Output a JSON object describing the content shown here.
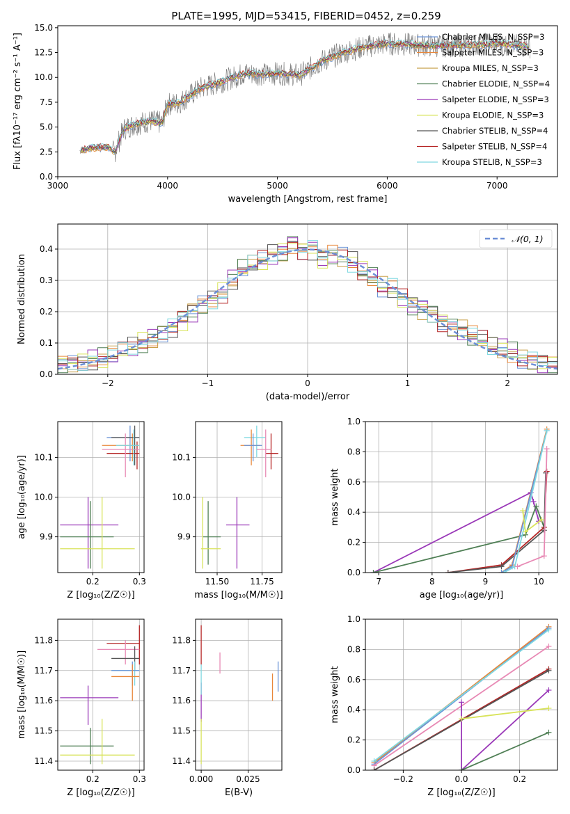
{
  "figure": {
    "title": "PLATE=1995, MJD=53415, FIBERID=0452, z=0.259"
  },
  "colors": {
    "chabrier_miles": "#6a93d6",
    "salpeter_miles": "#e8873a",
    "kroupa_miles": "#c8a04a",
    "chabrier_elodie": "#4f7f55",
    "salpeter_elodie": "#9a38b8",
    "kroupa_elodie": "#d8e35a",
    "chabrier_stelib": "#555555",
    "salpeter_stelib": "#b52424",
    "kroupa_stelib": "#7fd8e0",
    "pink": "#e88ab5",
    "normal": "#6d8fd6",
    "grid": "#b0b0b0",
    "spectrum": "#777777"
  },
  "chart_data": [
    {
      "id": "spectrum",
      "type": "line",
      "xlabel": "wavelength [Angstrom, rest frame]",
      "ylabel": "Flux [fλ10⁻¹⁷ erg cm⁻² s⁻¹ A⁻¹]",
      "xlim": [
        3000,
        7550
      ],
      "ylim": [
        0,
        15.2
      ],
      "xticks": [
        "3000",
        "4000",
        "5000",
        "6000",
        "7000"
      ],
      "yticks": [
        "0.0",
        "2.5",
        "5.0",
        "7.5",
        "10.0",
        "12.5",
        "15.0"
      ],
      "grid": false,
      "legend_position": "right",
      "legend": [
        "Chabrier MILES, N_SSP=3",
        "Salpeter MILES, N_SSP=3",
        "Kroupa MILES, N_SSP=3",
        "Chabrier ELODIE, N_SSP=4",
        "Salpeter ELODIE, N_SSP=3",
        "Kroupa ELODIE, N_SSP=3",
        "Chabrier STELIB, N_SSP=4",
        "Salpeter STELIB, N_SSP=4",
        "Kroupa STELIB, N_SSP=3"
      ],
      "continuum": {
        "x": [
          3200,
          3300,
          3450,
          3520,
          3600,
          3700,
          3850,
          3950,
          4000,
          4100,
          4300,
          4500,
          4700,
          4900,
          5000,
          5150,
          5200,
          5400,
          5600,
          5800,
          6000,
          6200,
          6400,
          6600,
          6800,
          7000,
          7200,
          7300
        ],
        "y": [
          2.6,
          2.9,
          3.0,
          2.5,
          4.8,
          5.3,
          5.6,
          5.4,
          7.3,
          7.4,
          8.9,
          9.6,
          10.4,
          10.3,
          10.4,
          10.3,
          10.2,
          11.6,
          12.5,
          13.1,
          13.4,
          13.3,
          13.2,
          13.2,
          13.3,
          13.4,
          13.2,
          13.1
        ]
      }
    },
    {
      "id": "residual-histogram",
      "type": "line",
      "xlabel": "(data-model)/error",
      "ylabel": "Normed distribution",
      "xlim": [
        -2.5,
        2.5
      ],
      "ylim": [
        0,
        0.48
      ],
      "xticks": [
        "−2",
        "−1",
        "0",
        "1",
        "2"
      ],
      "yticks": [
        "0.0",
        "0.1",
        "0.2",
        "0.3",
        "0.4"
      ],
      "grid": true,
      "legend_position": "top-right",
      "legend": [
        "𝒩(0, 1)"
      ],
      "bin_edges": [
        -2.5,
        -2.4,
        -2.3,
        -2.2,
        -2.1,
        -2.0,
        -1.9,
        -1.8,
        -1.7,
        -1.6,
        -1.5,
        -1.4,
        -1.3,
        -1.2,
        -1.1,
        -1.0,
        -0.9,
        -0.8,
        -0.7,
        -0.6,
        -0.5,
        -0.4,
        -0.3,
        -0.2,
        -0.1,
        0.0,
        0.1,
        0.2,
        0.3,
        0.4,
        0.5,
        0.6,
        0.7,
        0.8,
        0.9,
        1.0,
        1.1,
        1.2,
        1.3,
        1.4,
        1.5,
        1.6,
        1.7,
        1.8,
        1.9,
        2.0,
        2.1,
        2.2,
        2.3,
        2.4,
        2.5
      ],
      "histogram_mean": [
        0.03,
        0.035,
        0.04,
        0.045,
        0.05,
        0.06,
        0.075,
        0.085,
        0.1,
        0.115,
        0.135,
        0.15,
        0.175,
        0.2,
        0.22,
        0.24,
        0.26,
        0.3,
        0.34,
        0.35,
        0.36,
        0.38,
        0.39,
        0.42,
        0.4,
        0.4,
        0.37,
        0.38,
        0.37,
        0.36,
        0.33,
        0.31,
        0.28,
        0.27,
        0.24,
        0.22,
        0.21,
        0.2,
        0.17,
        0.15,
        0.14,
        0.12,
        0.11,
        0.09,
        0.08,
        0.07,
        0.05,
        0.04,
        0.035,
        0.03
      ]
    },
    {
      "id": "age-vs-z",
      "type": "scatter",
      "xlabel": "Z [log₁₀(Z/Z☉)]",
      "ylabel": "age  [log₁₀(age/yr)]",
      "xlim": [
        0.125,
        0.31
      ],
      "ylim": [
        9.81,
        10.19
      ],
      "xticks": [
        "0.2",
        "0.3"
      ],
      "yticks": [
        "9.9",
        "10.0",
        "10.1"
      ],
      "grid": true,
      "points": [
        {
          "series": "chabrier_miles",
          "x": 0.28,
          "y": 10.15,
          "xerr": [
            0.23,
            0.3
          ],
          "yerr": [
            10.09,
            10.18
          ]
        },
        {
          "series": "salpeter_miles",
          "x": 0.285,
          "y": 10.13,
          "xerr": [
            0.22,
            0.3
          ],
          "yerr": [
            10.09,
            10.16
          ]
        },
        {
          "series": "chabrier_stelib",
          "x": 0.29,
          "y": 10.15,
          "xerr": [
            0.24,
            0.3
          ],
          "yerr": [
            10.08,
            10.18
          ]
        },
        {
          "series": "salpeter_stelib",
          "x": 0.295,
          "y": 10.11,
          "xerr": [
            0.23,
            0.3
          ],
          "yerr": [
            10.07,
            10.14
          ]
        },
        {
          "series": "pink",
          "x": 0.27,
          "y": 10.12,
          "xerr": [
            0.22,
            0.3
          ],
          "yerr": [
            10.05,
            10.16
          ]
        },
        {
          "series": "kroupa_stelib",
          "x": 0.288,
          "y": 10.13,
          "xerr": [
            0.25,
            0.3
          ],
          "yerr": [
            10.08,
            10.17
          ]
        },
        {
          "series": "salpeter_elodie",
          "x": 0.19,
          "y": 9.93,
          "xerr": [
            0.13,
            0.255
          ],
          "yerr": [
            9.82,
            10.0
          ]
        },
        {
          "series": "chabrier_elodie",
          "x": 0.195,
          "y": 9.9,
          "xerr": [
            0.13,
            0.245
          ],
          "yerr": [
            9.82,
            9.99
          ]
        },
        {
          "series": "kroupa_elodie",
          "x": 0.22,
          "y": 9.87,
          "xerr": [
            0.13,
            0.29
          ],
          "yerr": [
            9.82,
            10.0
          ]
        }
      ]
    },
    {
      "id": "age-vs-mass",
      "type": "scatter",
      "xlabel": "mass [log₁₀(M/M☉)]",
      "ylabel": "",
      "xlim": [
        11.38,
        11.86
      ],
      "ylim": [
        9.81,
        10.19
      ],
      "xticks": [
        "11.50",
        "11.75"
      ],
      "yticks": [
        "9.9",
        "10.0",
        "10.1"
      ],
      "grid": true,
      "points": [
        {
          "series": "kroupa_stelib",
          "x": 11.72,
          "y": 10.15,
          "xerr": [
            11.65,
            11.77
          ],
          "yerr": [
            10.1,
            10.18
          ]
        },
        {
          "series": "salpeter_miles",
          "x": 11.69,
          "y": 10.13,
          "xerr": [
            11.63,
            11.74
          ],
          "yerr": [
            10.08,
            10.17
          ]
        },
        {
          "series": "chabrier_miles",
          "x": 11.7,
          "y": 10.13,
          "xerr": [
            11.65,
            11.75
          ],
          "yerr": [
            10.09,
            10.16
          ]
        },
        {
          "series": "salpeter_stelib",
          "x": 11.8,
          "y": 10.11,
          "xerr": [
            11.77,
            11.84
          ],
          "yerr": [
            10.07,
            10.16
          ]
        },
        {
          "series": "pink",
          "x": 11.77,
          "y": 10.12,
          "xerr": [
            11.72,
            11.8
          ],
          "yerr": [
            10.05,
            10.17
          ]
        },
        {
          "series": "salpeter_elodie",
          "x": 11.61,
          "y": 9.93,
          "xerr": [
            11.55,
            11.68
          ],
          "yerr": [
            9.82,
            10.0
          ]
        },
        {
          "series": "chabrier_elodie",
          "x": 11.45,
          "y": 9.9,
          "xerr": [
            11.42,
            11.52
          ],
          "yerr": [
            9.83,
            9.99
          ]
        },
        {
          "series": "kroupa_elodie",
          "x": 11.42,
          "y": 9.87,
          "xerr": [
            11.41,
            11.52
          ],
          "yerr": [
            9.82,
            10.0
          ]
        }
      ]
    },
    {
      "id": "weight-vs-age",
      "type": "line",
      "xlabel": "age  [log₁₀(age/yr)]",
      "ylabel": "mass weight",
      "xlim": [
        6.75,
        10.35
      ],
      "ylim": [
        0,
        1.0
      ],
      "xticks": [
        "7",
        "8",
        "9",
        "10"
      ],
      "yticks": [
        "0.0",
        "0.2",
        "0.4",
        "0.6",
        "0.8",
        "1.0"
      ],
      "grid": true,
      "series": [
        {
          "color": "salpeter_elodie",
          "x": [
            6.9,
            9.85,
            9.9,
            10.0
          ],
          "y": [
            0.0,
            0.53,
            0.47,
            0.34
          ]
        },
        {
          "color": "chabrier_elodie",
          "x": [
            6.9,
            9.75,
            9.95,
            10.1
          ],
          "y": [
            0.0,
            0.25,
            0.44,
            0.3
          ]
        },
        {
          "color": "salpeter_stelib",
          "x": [
            8.3,
            9.3,
            10.1,
            10.15
          ],
          "y": [
            0.0,
            0.05,
            0.3,
            0.67
          ]
        },
        {
          "color": "chabrier_stelib",
          "x": [
            8.3,
            9.3,
            10.1,
            10.13
          ],
          "y": [
            0.0,
            0.04,
            0.28,
            0.66
          ]
        },
        {
          "color": "salpeter_miles",
          "x": [
            9.3,
            9.5,
            10.15
          ],
          "y": [
            0.0,
            0.05,
            0.95
          ]
        },
        {
          "color": "chabrier_miles",
          "x": [
            9.3,
            9.5,
            10.15
          ],
          "y": [
            0.0,
            0.04,
            0.94
          ]
        },
        {
          "color": "kroupa_stelib",
          "x": [
            9.35,
            9.55,
            10.15
          ],
          "y": [
            0.0,
            0.04,
            0.94
          ]
        },
        {
          "color": "kroupa_elodie",
          "x": [
            9.7,
            9.75,
            10.05
          ],
          "y": [
            0.41,
            0.27,
            0.35
          ]
        },
        {
          "color": "pink",
          "x": [
            9.6,
            10.1,
            10.15
          ],
          "y": [
            0.04,
            0.11,
            0.82
          ]
        }
      ]
    },
    {
      "id": "mass-vs-z",
      "type": "scatter",
      "xlabel": "Z [log₁₀(Z/Z☉)]",
      "ylabel": "mass [log₁₀(M/M☉)]",
      "xlim": [
        0.125,
        0.31
      ],
      "ylim": [
        11.37,
        11.87
      ],
      "xticks": [
        "0.2",
        "0.3"
      ],
      "yticks": [
        "11.4",
        "11.5",
        "11.6",
        "11.7",
        "11.8"
      ],
      "grid": true,
      "points": [
        {
          "series": "salpeter_stelib",
          "x": 0.3,
          "y": 11.79,
          "xerr": [
            0.23,
            0.3
          ],
          "yerr": [
            11.72,
            11.85
          ]
        },
        {
          "series": "pink",
          "x": 0.27,
          "y": 11.77,
          "xerr": [
            0.21,
            0.3
          ],
          "yerr": [
            11.72,
            11.8
          ]
        },
        {
          "series": "chabrier_stelib",
          "x": 0.29,
          "y": 11.74,
          "xerr": [
            0.24,
            0.3
          ],
          "yerr": [
            11.7,
            11.78
          ]
        },
        {
          "series": "kroupa_stelib",
          "x": 0.29,
          "y": 11.7,
          "xerr": [
            0.24,
            0.3
          ],
          "yerr": [
            11.65,
            11.73
          ]
        },
        {
          "series": "chabrier_miles",
          "x": 0.285,
          "y": 11.7,
          "xerr": [
            0.24,
            0.3
          ],
          "yerr": [
            11.65,
            11.73
          ]
        },
        {
          "series": "salpeter_miles",
          "x": 0.285,
          "y": 11.68,
          "xerr": [
            0.24,
            0.3
          ],
          "yerr": [
            11.6,
            11.72
          ]
        },
        {
          "series": "salpeter_elodie",
          "x": 0.19,
          "y": 11.61,
          "xerr": [
            0.13,
            0.255
          ],
          "yerr": [
            11.52,
            11.65
          ]
        },
        {
          "series": "chabrier_elodie",
          "x": 0.195,
          "y": 11.45,
          "xerr": [
            0.13,
            0.245
          ],
          "yerr": [
            11.39,
            11.51
          ]
        },
        {
          "series": "kroupa_elodie",
          "x": 0.22,
          "y": 11.42,
          "xerr": [
            0.13,
            0.29
          ],
          "yerr": [
            11.39,
            11.54
          ]
        }
      ]
    },
    {
      "id": "mass-vs-ebv",
      "type": "scatter",
      "xlabel": "E(B-V)",
      "ylabel": "",
      "xlim": [
        -0.003,
        0.043
      ],
      "ylim": [
        11.37,
        11.87
      ],
      "xticks": [
        "0.000",
        "0.025"
      ],
      "yticks": [
        "11.4",
        "11.5",
        "11.6",
        "11.7",
        "11.8"
      ],
      "grid": true,
      "points": [
        {
          "series": "salpeter_stelib",
          "x": 0.0,
          "y": 11.79,
          "xerr": [
            0.0,
            0.0
          ],
          "yerr": [
            11.72,
            11.85
          ]
        },
        {
          "series": "salpeter_elodie",
          "x": 0.0,
          "y": 11.61,
          "xerr": [
            0.0,
            0.0
          ],
          "yerr": [
            11.53,
            11.66
          ]
        },
        {
          "series": "kroupa_stelib",
          "x": 0.0,
          "y": 11.68,
          "xerr": [
            0.0,
            0.0
          ],
          "yerr": [
            11.62,
            11.72
          ]
        },
        {
          "series": "kroupa_elodie",
          "x": 0.0,
          "y": 11.45,
          "xerr": [
            0.0,
            0.0
          ],
          "yerr": [
            11.39,
            11.54
          ]
        },
        {
          "series": "pink",
          "x": 0.01,
          "y": 11.72,
          "xerr": [
            0.01,
            0.01
          ],
          "yerr": [
            11.69,
            11.76
          ]
        },
        {
          "series": "salpeter_miles",
          "x": 0.038,
          "y": 11.66,
          "xerr": [
            0.038,
            0.038
          ],
          "yerr": [
            11.6,
            11.69
          ]
        },
        {
          "series": "chabrier_miles",
          "x": 0.041,
          "y": 11.69,
          "xerr": [
            0.041,
            0.041
          ],
          "yerr": [
            11.63,
            11.73
          ]
        }
      ]
    },
    {
      "id": "weight-vs-z",
      "type": "line",
      "xlabel": "Z [log₁₀(Z/Z☉)]",
      "ylabel": "mass weight",
      "xlim": [
        -0.33,
        0.33
      ],
      "ylim": [
        0,
        1.0
      ],
      "xticks": [
        "−0.2",
        "0.0",
        "0.2"
      ],
      "yticks": [
        "0.0",
        "0.2",
        "0.4",
        "0.6",
        "0.8",
        "1.0"
      ],
      "grid": true,
      "series": [
        {
          "color": "salpeter_miles",
          "x": [
            -0.3,
            0.3
          ],
          "y": [
            0.05,
            0.95
          ]
        },
        {
          "color": "chabrier_miles",
          "x": [
            -0.3,
            0.3
          ],
          "y": [
            0.04,
            0.94
          ]
        },
        {
          "color": "kroupa_stelib",
          "x": [
            -0.3,
            0.3
          ],
          "y": [
            0.06,
            0.93
          ]
        },
        {
          "color": "pink",
          "x": [
            -0.3,
            0.3
          ],
          "y": [
            0.03,
            0.82
          ]
        },
        {
          "color": "salpeter_stelib",
          "x": [
            -0.3,
            0.3
          ],
          "y": [
            0.0,
            0.67
          ]
        },
        {
          "color": "chabrier_stelib",
          "x": [
            -0.3,
            0.3
          ],
          "y": [
            0.0,
            0.66
          ]
        },
        {
          "color": "salpeter_elodie",
          "x": [
            0.0,
            0.0,
            0.3
          ],
          "y": [
            0.45,
            0.0,
            0.53
          ]
        },
        {
          "color": "chabrier_elodie",
          "x": [
            0.0,
            0.3
          ],
          "y": [
            0.0,
            0.25
          ]
        },
        {
          "color": "kroupa_elodie",
          "x": [
            0.0,
            0.3
          ],
          "y": [
            0.34,
            0.41
          ]
        }
      ]
    }
  ]
}
